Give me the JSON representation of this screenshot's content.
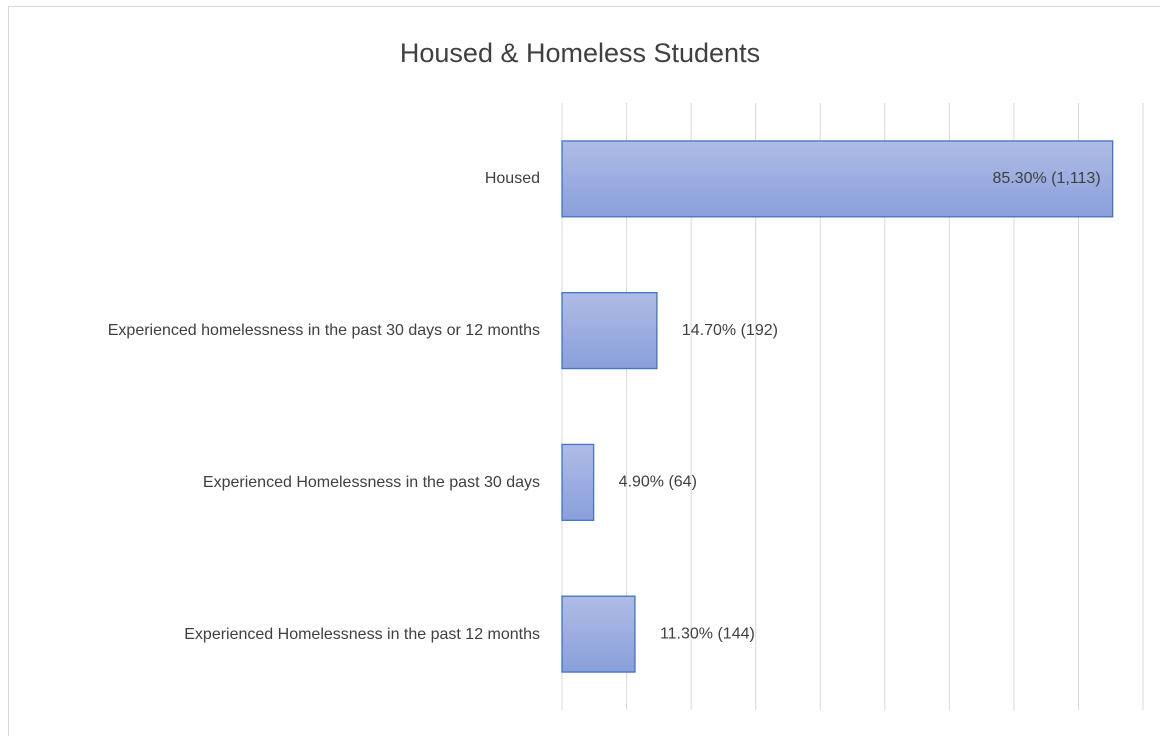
{
  "chart_data": {
    "type": "bar",
    "orientation": "horizontal",
    "title": "Housed & Homeless Students",
    "categories": [
      "Housed",
      "Experienced homelessness in the past 30 days or 12 months",
      "Experienced Homelessness in the past 30 days",
      "Experienced Homelessness in the past 12 months"
    ],
    "values": [
      85.3,
      14.7,
      4.9,
      11.3
    ],
    "value_labels": [
      "85.30% (1,113)",
      "14.70% (192)",
      "4.90% (64)",
      "11.30% (144)"
    ],
    "color": "#4472c4",
    "xlim": [
      0,
      90
    ],
    "xticks": [
      0,
      10,
      20,
      30,
      40,
      50,
      60,
      70,
      80,
      90
    ],
    "grid": true
  }
}
